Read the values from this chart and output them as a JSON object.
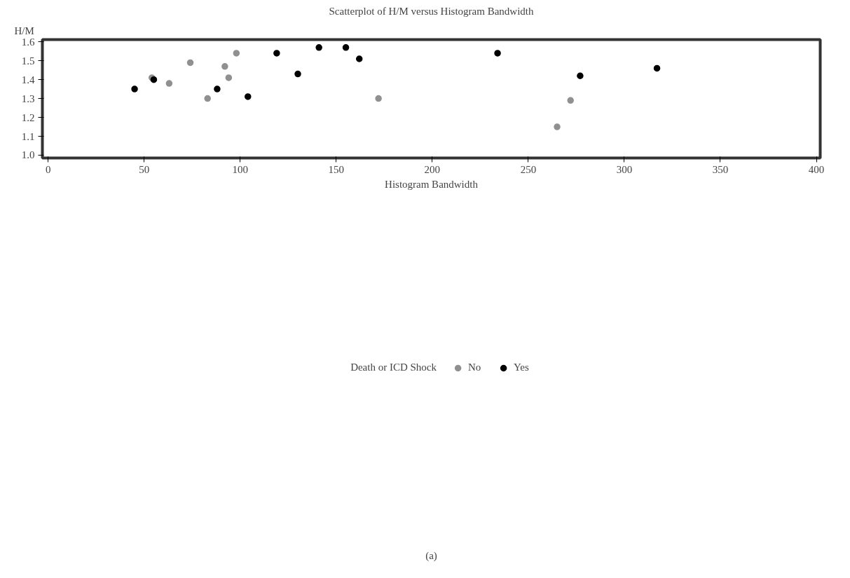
{
  "chart_data": {
    "type": "scatter",
    "title": "Scatterplot of H/M versus Histogram Bandwidth",
    "xlabel": "Histogram Bandwidth",
    "ylabel": "H/M",
    "legend_title": "Death or ICD Shock",
    "legend": "bottom",
    "marker": "circle",
    "grid": false,
    "xlim": [
      -3,
      402
    ],
    "xticks": [
      0,
      50,
      100,
      150,
      200,
      250,
      300,
      350,
      400
    ],
    "ylim": [
      0.985,
      1.612
    ],
    "yticks": [
      {
        "value": 1.0,
        "label": "1.0"
      },
      1.1,
      1.2,
      1.3,
      1.4,
      1.5,
      1.6
    ],
    "annotations": [
      "(a)"
    ],
    "series": [
      {
        "name": "No",
        "color": "#909090",
        "x": [
          54,
          63,
          74,
          83,
          92,
          94,
          98,
          172,
          265,
          272
        ],
        "values": [
          1.41,
          1.38,
          1.49,
          1.3,
          1.47,
          1.41,
          1.54,
          1.3,
          1.15,
          1.29
        ]
      },
      {
        "name": "Yes",
        "color": "#000000",
        "x": [
          45,
          55,
          88,
          104,
          119,
          130,
          141,
          155,
          162,
          234,
          277,
          317
        ],
        "values": [
          1.35,
          1.4,
          1.35,
          1.31,
          1.54,
          1.43,
          1.57,
          1.57,
          1.51,
          1.54,
          1.42,
          1.46
        ]
      }
    ]
  }
}
